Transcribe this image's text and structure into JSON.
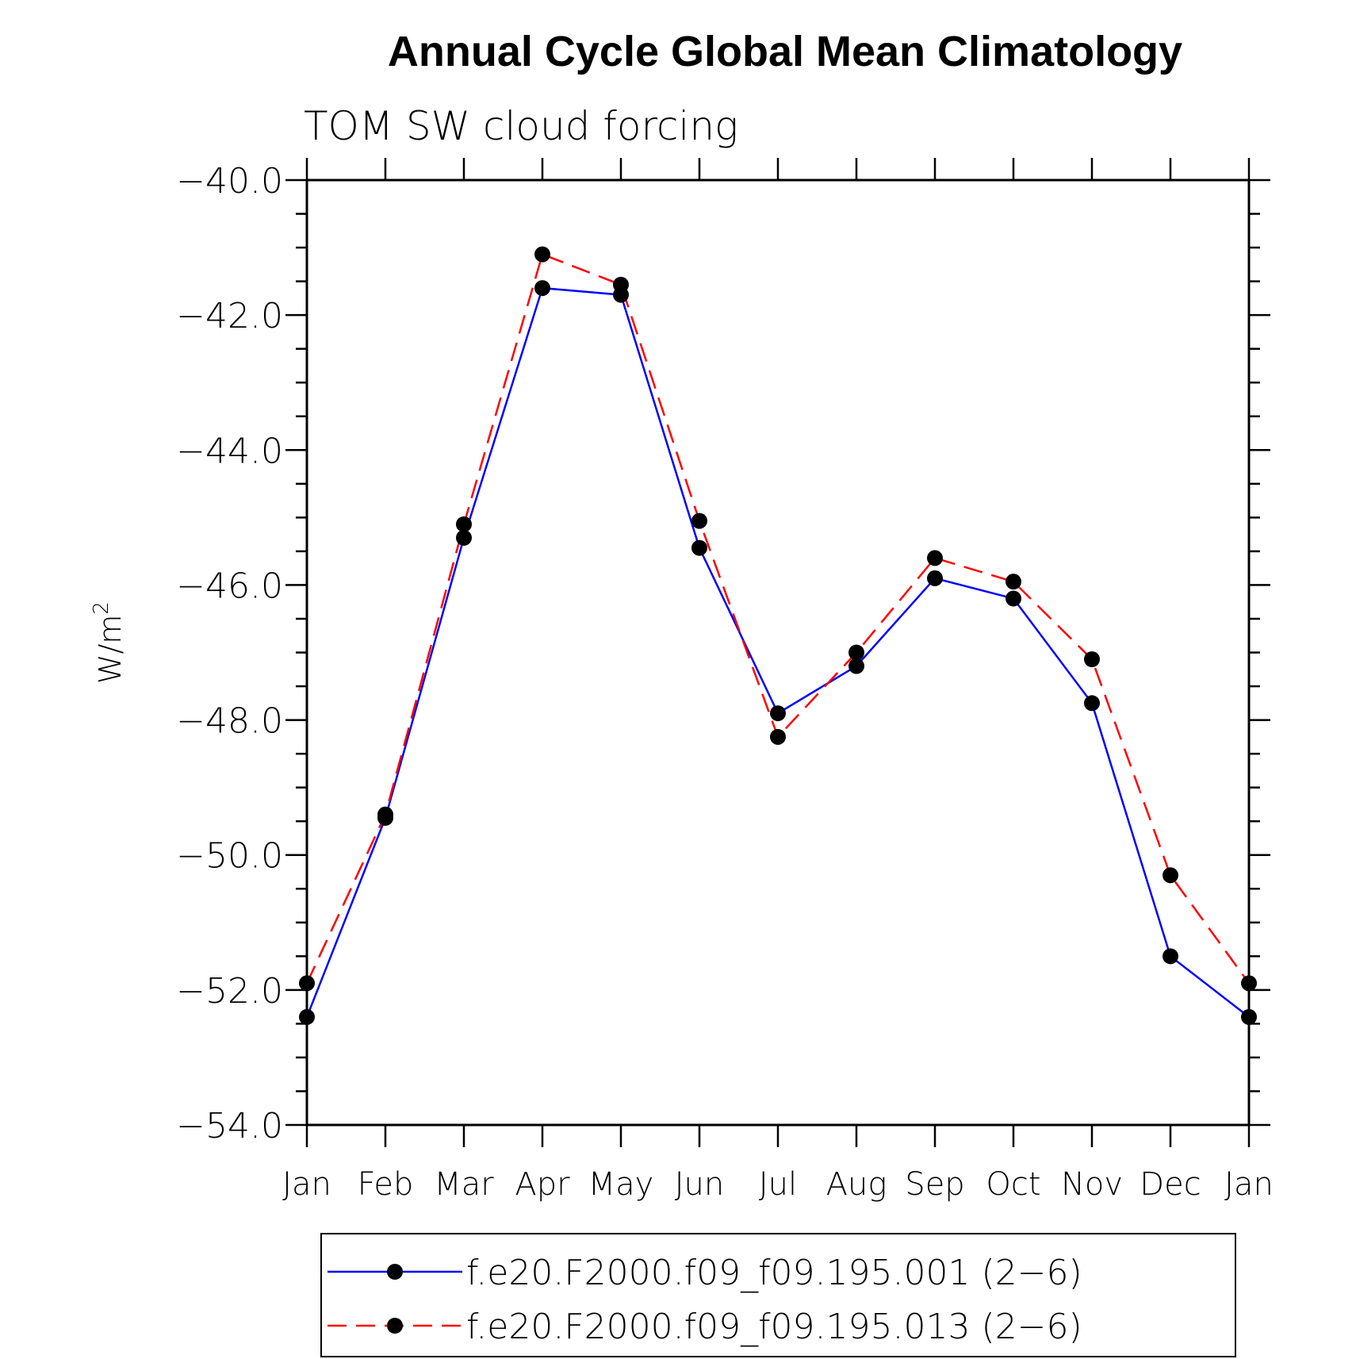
{
  "chart_data": {
    "type": "line",
    "title": "Annual Cycle Global Mean Climatology",
    "subtitle": "TOM SW cloud forcing",
    "ylabel_base": "W/m",
    "ylabel_sup": "2",
    "ylim": [
      -54.0,
      -40.0
    ],
    "yticks": [
      "-40.0",
      "-42.0",
      "-44.0",
      "-46.0",
      "-48.0",
      "-50.0",
      "-52.0",
      "-54.0"
    ],
    "categories": [
      "Jan",
      "Feb",
      "Mar",
      "Apr",
      "May",
      "Jun",
      "Jul",
      "Aug",
      "Sep",
      "Oct",
      "Nov",
      "Dec",
      "Jan"
    ],
    "grid": false,
    "legend_position": "bottom",
    "series": [
      {
        "name": "f.e20.F2000.f09_f09.195.001 (2-6)",
        "color": "#0000ff",
        "dash": "solid",
        "marker": "filled-circle",
        "values": [
          -52.4,
          -49.45,
          -45.3,
          -41.6,
          -41.7,
          -45.45,
          -47.9,
          -47.2,
          -45.9,
          -46.2,
          -47.75,
          -51.5,
          -52.4
        ]
      },
      {
        "name": "f.e20.F2000.f09_f09.195.013 (2-6)",
        "color": "#ff0000",
        "dash": "dashed",
        "marker": "filled-circle",
        "values": [
          -51.9,
          -49.4,
          -45.1,
          -41.1,
          -41.55,
          -45.05,
          -48.25,
          -47.0,
          -45.6,
          -45.95,
          -47.1,
          -50.3,
          -51.9
        ]
      }
    ]
  }
}
